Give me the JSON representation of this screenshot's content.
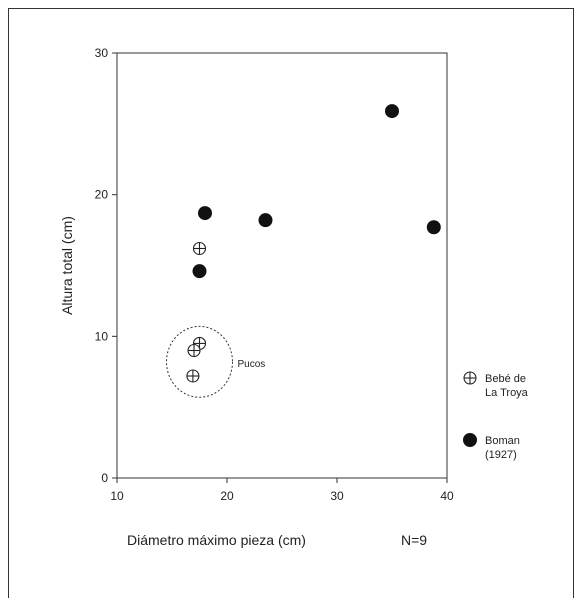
{
  "chart_data": {
    "type": "scatter",
    "title": "",
    "xlabel": "Diámetro máximo pieza (cm)",
    "ylabel": "Altura total (cm)",
    "note": "N=9",
    "xlim": [
      10,
      40
    ],
    "ylim": [
      0,
      30
    ],
    "xticks": [
      10,
      20,
      30,
      40
    ],
    "yticks": [
      0,
      10,
      20,
      30
    ],
    "grid": false,
    "legend_position": "right",
    "series": [
      {
        "name": "Bebé de La Troya",
        "name_lines": [
          "Bebé de",
          "La Troya"
        ],
        "marker": "circle-cross",
        "x": [
          17.5,
          17.5,
          17.0,
          16.9
        ],
        "y": [
          16.2,
          9.5,
          9.0,
          7.2
        ]
      },
      {
        "name": "Boman (1927)",
        "name_lines": [
          "Boman",
          "(1927)"
        ],
        "marker": "filled-circle",
        "x": [
          18.0,
          17.5,
          23.5,
          35.0,
          38.8
        ],
        "y": [
          18.7,
          14.6,
          18.2,
          25.9,
          17.7
        ]
      }
    ],
    "annotations": [
      {
        "text": "Pucos",
        "center": [
          17.5,
          8.2
        ],
        "radius_data": [
          3.0,
          2.5
        ]
      }
    ]
  }
}
